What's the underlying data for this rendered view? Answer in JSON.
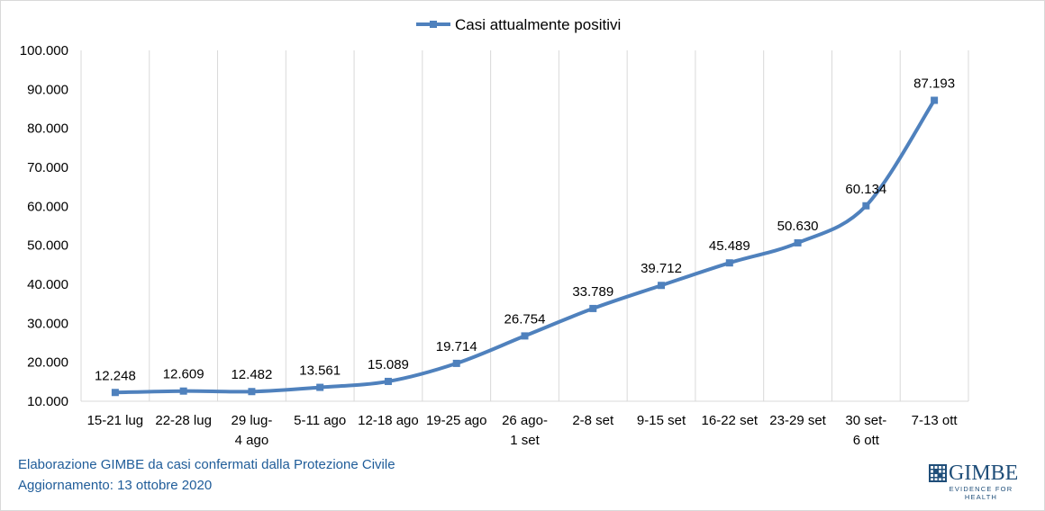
{
  "chart_data": {
    "type": "line",
    "title": "",
    "xlabel": "",
    "ylabel": "",
    "ylim": [
      10000,
      100000
    ],
    "yticks": [
      10000,
      20000,
      30000,
      40000,
      50000,
      60000,
      70000,
      80000,
      90000,
      100000
    ],
    "ytick_labels": [
      "10.000",
      "20.000",
      "30.000",
      "40.000",
      "50.000",
      "60.000",
      "70.000",
      "80.000",
      "90.000",
      "100.000"
    ],
    "grid": "vertical",
    "legend": "top-center",
    "categories": [
      [
        "15-21 lug"
      ],
      [
        "22-28 lug"
      ],
      [
        "29 lug-",
        "4 ago"
      ],
      [
        "5-11 ago"
      ],
      [
        "12-18 ago"
      ],
      [
        "19-25 ago"
      ],
      [
        "26 ago-",
        "1 set"
      ],
      [
        "2-8 set"
      ],
      [
        "9-15 set"
      ],
      [
        "16-22 set"
      ],
      [
        "23-29 set"
      ],
      [
        "30 set-",
        "6 ott"
      ],
      [
        "7-13 ott"
      ]
    ],
    "series": [
      {
        "name": "Casi attualmente positivi",
        "color": "#4f81bd",
        "values": [
          12248,
          12609,
          12482,
          13561,
          15089,
          19714,
          26754,
          33789,
          39712,
          45489,
          50630,
          60134,
          87193
        ],
        "labels": [
          "12.248",
          "12.609",
          "12.482",
          "13.561",
          "15.089",
          "19.714",
          "26.754",
          "33.789",
          "39.712",
          "45.489",
          "50.630",
          "60.134",
          "87.193"
        ]
      }
    ]
  },
  "footer": {
    "line1": "Elaborazione GIMBE da casi confermati dalla Protezione Civile",
    "line2": "Aggiornamento:  13 ottobre 2020"
  },
  "logo": {
    "name": "GIMBE",
    "tagline": "EVIDENCE FOR HEALTH",
    "color": "#1f4e79"
  }
}
